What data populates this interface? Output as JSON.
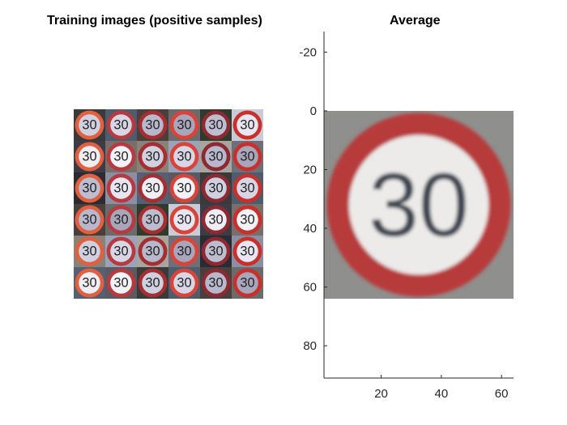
{
  "left_panel": {
    "title": "Training images (positive samples)",
    "grid_rows": 6,
    "grid_cols": 6,
    "sign_text": "30",
    "sign_rim_color": "#c62a2a",
    "sign_face_color": "#f2f2f6",
    "sign_text_color": "#222222"
  },
  "chart_data": {
    "type": "image",
    "title": "Average",
    "xlabel": "",
    "ylabel": "",
    "xlim": [
      1,
      64
    ],
    "ylim": [
      -27,
      91
    ],
    "y_reversed": true,
    "xticks": [
      20,
      40,
      60
    ],
    "yticks": [
      -20,
      0,
      20,
      40,
      60,
      80
    ],
    "image_extent": {
      "x": [
        0,
        64
      ],
      "y": [
        0,
        64
      ]
    },
    "image_content": "averaged speed-limit sign: red ring, white face, dark '30' on gray background",
    "image_text": "30",
    "colors": {
      "background": "#8f8f8d",
      "ring": "#b83a3a",
      "face": "#ecebea",
      "digits": "#3d4450"
    }
  }
}
